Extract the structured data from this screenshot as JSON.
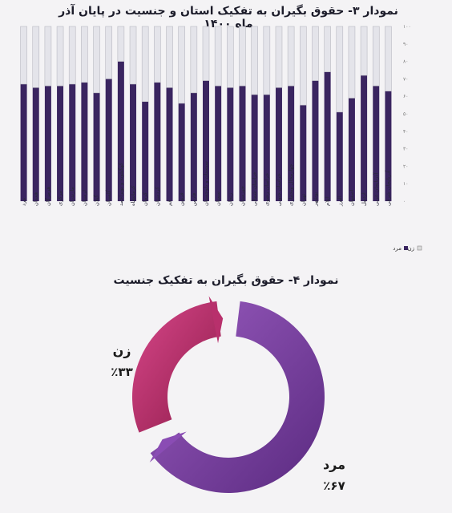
{
  "chart_data": [
    {
      "type": "bar",
      "title": "نمودار ۳- حقوق بگیران به تفکیک استان و جنسیت  در پایان آذر ماه ۱۴۰۰",
      "categories": [
        "مرد",
        "همدان",
        "هرمزگان",
        "مرکزی",
        "مازندران",
        "لرستان",
        "گیلان",
        "گلستان",
        "کهگیلویه و بویراحمد",
        "کرمانشاه",
        "کرمان",
        "کردستان",
        "قم",
        "قزوین",
        "فارس",
        "سیستان و بلوچستان",
        "سمنان",
        "زنجان",
        "خوزستان",
        "خراسان شمالی",
        "خراسان رضوی",
        "خراسان جنوبی",
        "چهارمحال وبختیاری",
        "تهران",
        "بوشهر",
        "ایلام",
        "البرز",
        "اصفهان",
        "اردبیل",
        "آذربایجان غربی",
        "آذربایجان شرقی"
      ],
      "series": [
        {
          "name": "",
          "color": "#3a2560",
          "values": [
            67,
            65,
            66,
            66,
            67,
            68,
            62,
            70,
            80,
            67,
            57,
            68,
            65,
            56,
            62,
            69,
            66,
            65,
            66,
            61,
            61,
            65,
            66,
            55,
            69,
            74,
            51,
            59,
            72,
            66,
            63
          ]
        },
        {
          "name": "زن",
          "color": "#e4e4ea",
          "values": [
            33,
            35,
            34,
            34,
            33,
            32,
            38,
            30,
            20,
            33,
            43,
            32,
            35,
            44,
            38,
            31,
            34,
            35,
            34,
            39,
            39,
            35,
            34,
            45,
            31,
            26,
            49,
            41,
            28,
            34,
            37
          ]
        }
      ],
      "legend": [
        "مرد",
        "زن"
      ],
      "legend_position": "bottom-right",
      "ylim": [
        0,
        100
      ],
      "yticks": [
        "۰",
        "۱۰",
        "۲۰",
        "۳۰",
        "۴۰",
        "۵۰",
        "۶۰",
        "۷۰",
        "۸۰",
        "۹۰",
        "۱۰۰"
      ]
    },
    {
      "type": "pie",
      "title": "نمودار ۴- حقوق بگیران به تفکیک جنسیت",
      "slices": [
        {
          "label": "زن",
          "value": 33,
          "value_label": "٪۳۳",
          "color": "#c2306c"
        },
        {
          "label": "مرد",
          "value": 67,
          "value_label": "٪۶۷",
          "color": "#7a3c9e"
        }
      ]
    }
  ]
}
